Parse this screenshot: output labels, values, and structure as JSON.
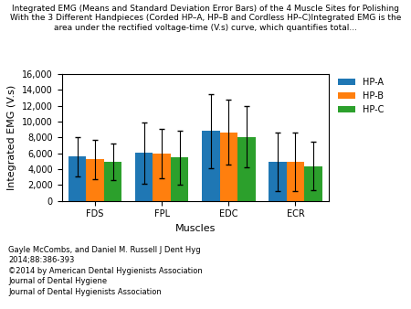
{
  "chart_data": {
    "type": "bar",
    "title": "Integrated EMG (Means and Standard Deviation Error Bars) of the 4 Muscle Sites for Polishing\nWith the 3 Different Handpieces (Corded HP–A, HP–B and Cordless HP–C)Integrated EMG is the\narea under the rectified voltage-time (V.s) curve, which quantifies total...",
    "x_label": "Muscles",
    "y_label": "Integrated EMG (V.s)",
    "categories": [
      "FDS",
      "FPL",
      "EDC",
      "ECR"
    ],
    "series": [
      {
        "name": "HP-A",
        "values": [
          5600,
          6050,
          8800,
          4950
        ],
        "errors": [
          2500,
          3900,
          4700,
          3700
        ]
      },
      {
        "name": "HP-B",
        "values": [
          5250,
          5950,
          8650,
          4950
        ],
        "errors": [
          2500,
          3100,
          4100,
          3700
        ]
      },
      {
        "name": "HP-C",
        "values": [
          4900,
          5450,
          8100,
          4400
        ],
        "errors": [
          2300,
          3400,
          3900,
          3100
        ]
      }
    ],
    "ylim": [
      0,
      16000
    ],
    "yticks": [
      0,
      {
        "value": 2000,
        "label": "2,000"
      },
      {
        "value": 4000,
        "label": "4,000"
      },
      {
        "value": 6000,
        "label": "6,000"
      },
      {
        "value": 8000,
        "label": "8,000"
      },
      {
        "value": 10000,
        "label": "10,000"
      },
      {
        "value": 12000,
        "label": "12,000"
      },
      {
        "value": 14000,
        "label": "14,000"
      },
      {
        "value": 16000,
        "label": "16,000"
      }
    ],
    "legend": "upper left",
    "grid": false,
    "annotations": [
      "Gayle McCombs, and Daniel M. Russell J Dent Hyg",
      "2014;88:386-393",
      "©2014 by American Dental Hygienists Association",
      "Journal of Dental Hygiene",
      "Journal of Dental Hygienists Association"
    ]
  }
}
